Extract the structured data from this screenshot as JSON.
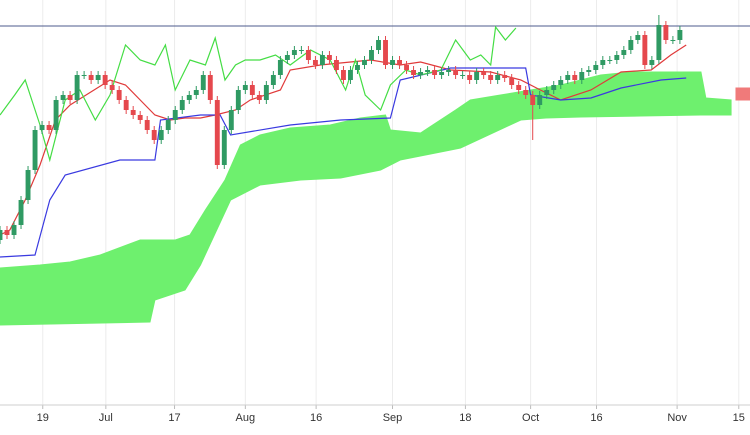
{
  "chart_data": {
    "type": "candlestick",
    "x": [
      0,
      1,
      2,
      3,
      4,
      5,
      6,
      7,
      8,
      9,
      10,
      11,
      12,
      13,
      14,
      15,
      16,
      17,
      18,
      19,
      20,
      21,
      22,
      23,
      24,
      25,
      26,
      27,
      28,
      29,
      30,
      31,
      32,
      33,
      34,
      35,
      36,
      37,
      38,
      39,
      40,
      41,
      42,
      43,
      44,
      45,
      46,
      47,
      48,
      49,
      50,
      51,
      52,
      53,
      54,
      55,
      56,
      57,
      58,
      59,
      60,
      61,
      62,
      63,
      64,
      65,
      66,
      67,
      68,
      69,
      70,
      71,
      72,
      73,
      74,
      75,
      76,
      77,
      78,
      79,
      80,
      81,
      82,
      83,
      84,
      85,
      86,
      87,
      88,
      89,
      90,
      91,
      92,
      93,
      94,
      95,
      96,
      97
    ],
    "open": [
      165,
      175,
      170,
      180,
      205,
      235,
      275,
      280,
      275,
      305,
      310,
      305,
      330,
      330,
      325,
      330,
      320,
      315,
      305,
      295,
      290,
      285,
      275,
      265,
      275,
      285,
      295,
      305,
      310,
      315,
      330,
      305,
      240,
      275,
      295,
      315,
      320,
      310,
      305,
      320,
      330,
      345,
      350,
      355,
      355,
      345,
      340,
      350,
      345,
      335,
      325,
      335,
      340,
      345,
      355,
      365,
      340,
      345,
      340,
      335,
      330,
      333,
      335,
      330,
      333,
      335,
      330,
      330,
      325,
      333,
      330,
      325,
      330,
      327,
      320,
      315,
      310,
      300,
      310,
      315,
      320,
      325,
      330,
      325,
      333,
      335,
      340,
      345,
      345,
      350,
      355,
      365,
      370,
      340,
      345,
      380,
      365,
      365
    ],
    "high": [
      179,
      179,
      184,
      209,
      239,
      279,
      284,
      284,
      309,
      314,
      314,
      334,
      334,
      334,
      334,
      334,
      324,
      319,
      309,
      299,
      294,
      289,
      279,
      279,
      289,
      299,
      309,
      314,
      319,
      334,
      334,
      309,
      279,
      299,
      319,
      324,
      324,
      314,
      324,
      334,
      349,
      354,
      359,
      359,
      359,
      349,
      354,
      354,
      349,
      339,
      339,
      344,
      349,
      359,
      369,
      369,
      349,
      349,
      344,
      339,
      337,
      339,
      339,
      337,
      339,
      339,
      334,
      334,
      337,
      337,
      334,
      334,
      334,
      331,
      324,
      319,
      314,
      314,
      319,
      324,
      329,
      334,
      334,
      337,
      339,
      344,
      349,
      349,
      354,
      359,
      369,
      374,
      374,
      349,
      390,
      384,
      369,
      379
    ],
    "low": [
      161,
      166,
      166,
      176,
      201,
      231,
      271,
      271,
      271,
      301,
      301,
      301,
      326,
      321,
      321,
      316,
      311,
      301,
      291,
      286,
      281,
      271,
      261,
      261,
      271,
      281,
      291,
      301,
      306,
      311,
      301,
      236,
      236,
      271,
      291,
      311,
      306,
      301,
      301,
      316,
      326,
      341,
      346,
      351,
      341,
      336,
      336,
      341,
      331,
      321,
      321,
      331,
      336,
      341,
      351,
      336,
      336,
      336,
      331,
      326,
      326,
      329,
      326,
      326,
      329,
      326,
      326,
      321,
      321,
      326,
      321,
      321,
      323,
      316,
      311,
      306,
      265,
      296,
      306,
      311,
      316,
      321,
      321,
      321,
      329,
      331,
      336,
      341,
      341,
      346,
      351,
      361,
      336,
      336,
      341,
      361,
      361,
      361
    ],
    "close": [
      175,
      170,
      180,
      205,
      235,
      275,
      280,
      275,
      305,
      310,
      305,
      330,
      330,
      325,
      330,
      320,
      315,
      305,
      295,
      290,
      285,
      275,
      265,
      275,
      285,
      295,
      305,
      310,
      315,
      330,
      305,
      240,
      275,
      295,
      315,
      320,
      310,
      305,
      320,
      330,
      345,
      350,
      355,
      355,
      345,
      340,
      350,
      345,
      335,
      325,
      335,
      340,
      345,
      355,
      365,
      340,
      345,
      340,
      335,
      330,
      333,
      335,
      330,
      333,
      335,
      330,
      330,
      325,
      333,
      330,
      325,
      330,
      327,
      320,
      315,
      310,
      300,
      310,
      315,
      320,
      325,
      330,
      325,
      333,
      335,
      340,
      345,
      345,
      350,
      355,
      365,
      370,
      340,
      345,
      380,
      365,
      365,
      375
    ],
    "up_color": "#2f9a63",
    "down_color": "#e5484d",
    "xlim": [
      0,
      107
    ],
    "ylim": [
      0,
      405
    ],
    "xticks": [
      {
        "value": 6.1,
        "label": "19"
      },
      {
        "value": 15.1,
        "label": "Jul"
      },
      {
        "value": 24.9,
        "label": "17"
      },
      {
        "value": 35,
        "label": "Aug"
      },
      {
        "value": 45.1,
        "label": "16"
      },
      {
        "value": 56,
        "label": "Sep"
      },
      {
        "value": 66.4,
        "label": "18"
      },
      {
        "value": 75.7,
        "label": "Oct"
      },
      {
        "value": 85.1,
        "label": "16"
      },
      {
        "value": 96.6,
        "label": "Nov"
      },
      {
        "value": 105.4,
        "label": "15"
      }
    ],
    "grid": true,
    "hline": {
      "value": 379,
      "color": "#4d5b8c"
    },
    "cloud": [
      {
        "color": "#6ef06e",
        "x_upper": [
          0,
          5.7,
          10,
          14.3,
          20,
          25,
          27.1,
          29.3,
          32.1,
          34.3,
          37.1,
          41.4,
          47.1,
          51.4,
          55,
          55.7,
          60,
          65,
          67.1,
          71.4,
          75.7,
          80,
          85.7,
          90,
          95,
          100,
          100.7,
          104.3
        ],
        "upper": [
          137,
          140,
          143,
          150,
          165,
          165,
          170,
          195,
          225,
          260,
          270,
          277,
          280,
          287,
          290,
          275,
          272,
          295,
          305,
          310,
          315,
          320,
          330,
          333,
          333,
          333,
          307,
          305
        ],
        "x_lower": [
          0,
          21.4,
          22.1,
          26.4,
          28.6,
          32.9,
          37.1,
          42.9,
          48.6,
          54.3,
          57.1,
          64.3,
          65.7,
          74.3,
          77.9,
          82.9,
          91.4,
          100,
          104.3
        ],
        "lower": [
          80,
          83,
          105,
          115,
          140,
          205,
          220,
          225,
          227,
          235,
          245,
          255,
          257,
          285,
          287,
          288,
          289,
          290,
          290
        ]
      },
      {
        "color": "#f07a7a",
        "x_upper": [
          105,
          107
        ],
        "upper": [
          317,
          317
        ],
        "x_lower": [
          105,
          107
        ],
        "lower": [
          305,
          305
        ]
      }
    ],
    "lines": [
      {
        "color": "#e03a3a",
        "x": [
          0,
          1.4,
          3.6,
          5.7,
          7.9,
          10,
          15.7,
          17.9,
          20,
          22.1,
          24.3,
          26.4,
          28.6,
          30.7,
          33.6,
          35.7,
          40,
          41.4,
          45.7,
          50,
          52.9,
          57.1,
          60,
          64.3,
          70,
          74.3,
          77.1,
          80,
          84.3,
          88.6,
          92.9,
          95.7,
          97.9
        ],
        "values": [
          170,
          175,
          205,
          240,
          285,
          300,
          325,
          320,
          305,
          290,
          285,
          287,
          287,
          290,
          295,
          305,
          315,
          335,
          340,
          343,
          345,
          340,
          343,
          335,
          333,
          325,
          315,
          305,
          315,
          333,
          335,
          350,
          360
        ]
      },
      {
        "color": "#3a3ae0",
        "x": [
          0,
          5,
          7.1,
          9.3,
          17.1,
          22.1,
          22.9,
          28.6,
          31.4,
          32.9,
          41.4,
          48.6,
          55.7,
          57.1,
          64.3,
          75,
          75.7,
          80,
          84.3,
          88.6,
          94.3,
          97.9
        ],
        "values": [
          148,
          150,
          205,
          230,
          245,
          245,
          285,
          290,
          290,
          270,
          280,
          285,
          287,
          325,
          337,
          337,
          310,
          305,
          307,
          317,
          325,
          327
        ]
      },
      {
        "color": "#44dd44",
        "x": [
          0,
          2.1,
          3.6,
          5.7,
          7.1,
          9.3,
          11.4,
          13.6,
          15.7,
          17.9,
          20,
          22.1,
          23.6,
          25,
          27.1,
          29.3,
          30.7,
          32.1,
          33.6,
          35,
          37.1,
          39.3,
          41.4,
          44.3,
          47.1,
          49.3,
          50.7,
          52.1,
          54.3,
          55.7,
          57.9,
          60,
          62.9,
          65,
          67.1,
          68.6,
          70,
          70.7,
          72.1,
          73.6
        ],
        "values": [
          290,
          310,
          325,
          280,
          245,
          305,
          315,
          285,
          310,
          360,
          345,
          340,
          360,
          315,
          345,
          340,
          367,
          325,
          340,
          345,
          345,
          350,
          340,
          355,
          345,
          315,
          345,
          310,
          295,
          320,
          335,
          330,
          335,
          365,
          345,
          350,
          340,
          378,
          365,
          377
        ]
      }
    ]
  }
}
